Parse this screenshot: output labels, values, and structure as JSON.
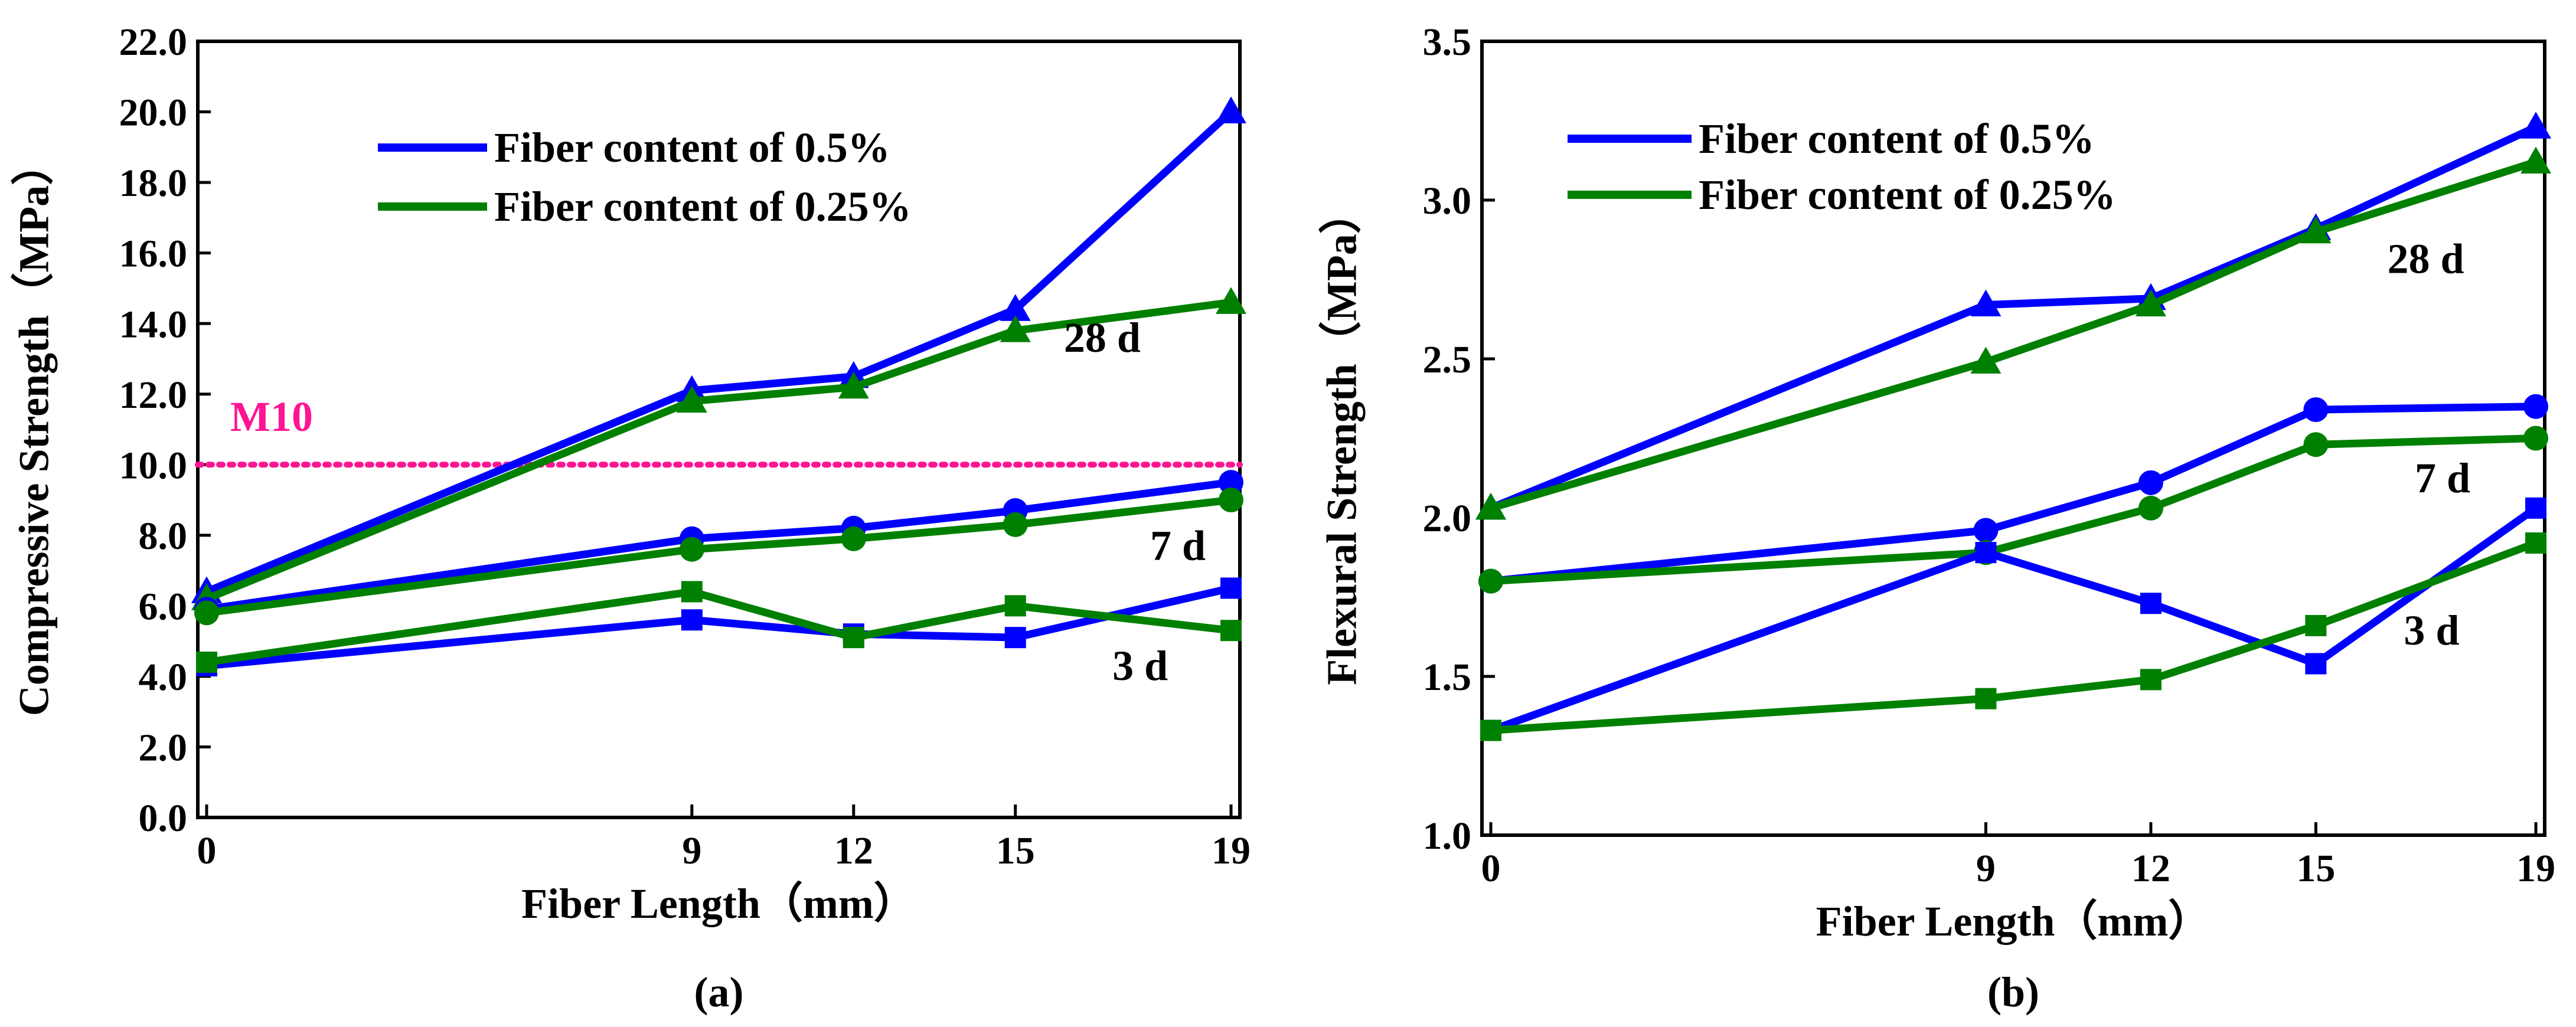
{
  "chart_data": [
    {
      "type": "line",
      "panel_label": "(a)",
      "xlabel": "Fiber Length（mm）",
      "ylabel": "Compressive Strength（MPa）",
      "categories": [
        "0",
        "9",
        "12",
        "15",
        "19"
      ],
      "x": [
        0,
        9,
        12,
        15,
        19
      ],
      "ylim": [
        0,
        22
      ],
      "yticks": [
        "0.0",
        "2.0",
        "4.0",
        "6.0",
        "8.0",
        "10.0",
        "12.0",
        "14.0",
        "16.0",
        "18.0",
        "20.0",
        "22.0"
      ],
      "legend": [
        {
          "label": "Fiber content of 0.5%",
          "color": "#0000FF"
        },
        {
          "label": "Fiber content of 0.25%",
          "color": "#008000"
        }
      ],
      "series": [
        {
          "name": "Fiber content of 0.5%",
          "age": "28 d",
          "marker": "triangle",
          "color": "#0000FF",
          "values": [
            6.4,
            12.1,
            12.5,
            14.4,
            20.0
          ]
        },
        {
          "name": "Fiber content of 0.25%",
          "age": "28 d",
          "marker": "triangle",
          "color": "#008000",
          "values": [
            6.2,
            11.8,
            12.2,
            13.8,
            14.6
          ]
        },
        {
          "name": "Fiber content of 0.5%",
          "age": "7 d",
          "marker": "circle",
          "color": "#0000FF",
          "values": [
            5.9,
            7.9,
            8.2,
            8.7,
            9.5
          ]
        },
        {
          "name": "Fiber content of 0.25%",
          "age": "7 d",
          "marker": "circle",
          "color": "#008000",
          "values": [
            5.8,
            7.6,
            7.9,
            8.3,
            9.0
          ]
        },
        {
          "name": "Fiber content of 0.5%",
          "age": "3 d",
          "marker": "square",
          "color": "#0000FF",
          "values": [
            4.3,
            5.6,
            5.2,
            5.1,
            6.5
          ]
        },
        {
          "name": "Fiber content of 0.25%",
          "age": "3 d",
          "marker": "square",
          "color": "#008000",
          "values": [
            4.4,
            6.4,
            5.1,
            6.0,
            5.3
          ]
        }
      ],
      "reference_line": {
        "label": "M10",
        "value": 10.0,
        "color": "#FF1493"
      },
      "annotations": [
        {
          "text": "28 d",
          "x": 15.9,
          "y": 13.2
        },
        {
          "text": "7 d",
          "x": 17.5,
          "y": 7.3
        },
        {
          "text": "3 d",
          "x": 16.8,
          "y": 3.9
        }
      ]
    },
    {
      "type": "line",
      "panel_label": "(b)",
      "xlabel": "Fiber Length（mm）",
      "ylabel": "Flexural Strength（MPa）",
      "categories": [
        "0",
        "9",
        "12",
        "15",
        "19"
      ],
      "x": [
        0,
        9,
        12,
        15,
        19
      ],
      "ylim": [
        1.0,
        3.5
      ],
      "yticks": [
        "1.0",
        "1.5",
        "2.0",
        "2.5",
        "3.0",
        "3.5"
      ],
      "legend": [
        {
          "label": "Fiber content of 0.5%",
          "color": "#0000FF"
        },
        {
          "label": "Fiber content of 0.25%",
          "color": "#008000"
        }
      ],
      "series": [
        {
          "name": "Fiber content of 0.5%",
          "age": "28 d",
          "marker": "triangle",
          "color": "#0000FF",
          "values": [
            2.03,
            2.67,
            2.69,
            2.91,
            3.23
          ]
        },
        {
          "name": "Fiber content of 0.25%",
          "age": "28 d",
          "marker": "triangle",
          "color": "#008000",
          "values": [
            2.03,
            2.49,
            2.67,
            2.9,
            3.12
          ]
        },
        {
          "name": "Fiber content of 0.5%",
          "age": "7 d",
          "marker": "circle",
          "color": "#0000FF",
          "values": [
            1.8,
            1.96,
            2.11,
            2.34,
            2.35
          ]
        },
        {
          "name": "Fiber content of 0.25%",
          "age": "7 d",
          "marker": "circle",
          "color": "#008000",
          "values": [
            1.8,
            1.89,
            2.03,
            2.23,
            2.25
          ]
        },
        {
          "name": "Fiber content of 0.5%",
          "age": "3 d",
          "marker": "square",
          "color": "#0000FF",
          "values": [
            1.33,
            1.89,
            1.73,
            1.54,
            2.03
          ]
        },
        {
          "name": "Fiber content of 0.25%",
          "age": "3 d",
          "marker": "square",
          "color": "#008000",
          "values": [
            1.33,
            1.43,
            1.49,
            1.66,
            1.92
          ]
        }
      ],
      "annotations": [
        {
          "text": "28 d",
          "x": 16.3,
          "y": 2.77
        },
        {
          "text": "7 d",
          "x": 16.8,
          "y": 2.08
        },
        {
          "text": "3 d",
          "x": 16.6,
          "y": 1.6
        }
      ]
    }
  ]
}
